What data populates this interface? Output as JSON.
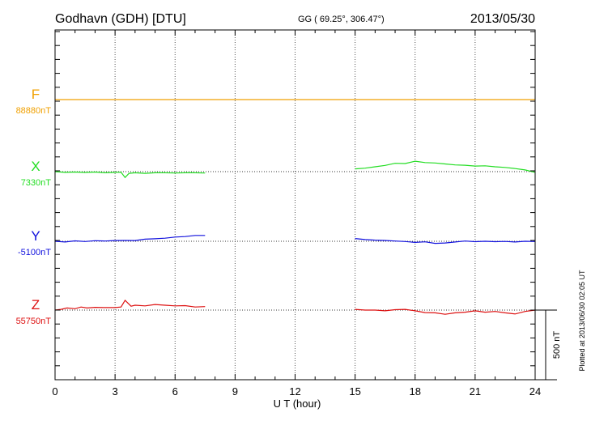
{
  "header": {
    "station": "Godhavn (GDH)  [DTU]",
    "coords": "GG ( 69.25°, 306.47°)",
    "date": "2013/05/30"
  },
  "side_note": "Plotted at 2013/06/30 02:05 UT",
  "scale_label": "500 nT",
  "chart_data": {
    "type": "line",
    "xlabel": "U T (hour)",
    "ylabel": "",
    "xlim": [
      0,
      24
    ],
    "x_ticks": [
      0,
      3,
      6,
      9,
      12,
      15,
      18,
      21,
      24
    ],
    "x_tick_labels": [
      "0",
      "3",
      "6",
      "9",
      "12",
      "15",
      "18",
      "21",
      "24"
    ],
    "scale_bar_nT": 500,
    "gap_hours": [
      7.5,
      15.0
    ],
    "series": [
      {
        "name": "F",
        "baseline_label": "88880nT",
        "color": "#f0a000",
        "points": [
          [
            0,
            0
          ],
          [
            3,
            0
          ],
          [
            6,
            0
          ],
          [
            9,
            0
          ],
          [
            12,
            0
          ],
          [
            15,
            0
          ],
          [
            18,
            0
          ],
          [
            21,
            0
          ],
          [
            24,
            0
          ]
        ]
      },
      {
        "name": "X",
        "baseline_label": "7330nT",
        "color": "#22dd22",
        "segments": [
          [
            [
              0,
              0
            ],
            [
              0.5,
              -5
            ],
            [
              1,
              -3
            ],
            [
              1.5,
              -6
            ],
            [
              2,
              -3
            ],
            [
              2.5,
              -8
            ],
            [
              3,
              -5
            ],
            [
              3.3,
              -4
            ],
            [
              3.5,
              -42
            ],
            [
              3.7,
              -12
            ],
            [
              4,
              -8
            ],
            [
              4.5,
              -12
            ],
            [
              5,
              -8
            ],
            [
              5.5,
              -8
            ],
            [
              6,
              -10
            ],
            [
              6.5,
              -8
            ],
            [
              7,
              -8
            ],
            [
              7.5,
              -10
            ]
          ],
          [
            [
              15,
              20
            ],
            [
              15.5,
              25
            ],
            [
              16,
              35
            ],
            [
              16.5,
              45
            ],
            [
              17,
              60
            ],
            [
              17.5,
              58
            ],
            [
              18,
              75
            ],
            [
              18.5,
              65
            ],
            [
              19,
              62
            ],
            [
              19.5,
              55
            ],
            [
              20,
              48
            ],
            [
              20.5,
              46
            ],
            [
              21,
              40
            ],
            [
              21.5,
              42
            ],
            [
              22,
              35
            ],
            [
              22.5,
              30
            ],
            [
              23,
              22
            ],
            [
              23.5,
              12
            ],
            [
              24,
              -5
            ]
          ]
        ]
      },
      {
        "name": "Y",
        "baseline_label": "-5100nT",
        "color": "#1010dd",
        "segments": [
          [
            [
              0,
              0
            ],
            [
              0.5,
              -5
            ],
            [
              1,
              3
            ],
            [
              1.5,
              -2
            ],
            [
              2,
              4
            ],
            [
              2.5,
              2
            ],
            [
              3,
              5
            ],
            [
              3.5,
              6
            ],
            [
              4,
              5
            ],
            [
              4.5,
              15
            ],
            [
              5,
              18
            ],
            [
              5.5,
              22
            ],
            [
              6,
              30
            ],
            [
              6.5,
              34
            ],
            [
              7,
              42
            ],
            [
              7.5,
              42
            ]
          ],
          [
            [
              15,
              20
            ],
            [
              15.5,
              12
            ],
            [
              16,
              8
            ],
            [
              16.5,
              6
            ],
            [
              17,
              2
            ],
            [
              17.5,
              -2
            ],
            [
              18,
              -8
            ],
            [
              18.5,
              -4
            ],
            [
              19,
              -15
            ],
            [
              19.5,
              -12
            ],
            [
              20,
              -5
            ],
            [
              20.5,
              2
            ],
            [
              21,
              -3
            ],
            [
              21.5,
              0
            ],
            [
              22,
              -3
            ],
            [
              22.5,
              -1
            ],
            [
              23,
              -5
            ],
            [
              23.5,
              0
            ],
            [
              24,
              -2
            ]
          ]
        ]
      },
      {
        "name": "Z",
        "baseline_label": "55750nT",
        "color": "#dd1010",
        "segments": [
          [
            [
              0,
              0
            ],
            [
              0.3,
              5
            ],
            [
              0.6,
              15
            ],
            [
              1,
              10
            ],
            [
              1.3,
              22
            ],
            [
              1.6,
              15
            ],
            [
              2,
              20
            ],
            [
              2.5,
              18
            ],
            [
              3,
              18
            ],
            [
              3.3,
              22
            ],
            [
              3.5,
              70
            ],
            [
              3.8,
              28
            ],
            [
              4,
              35
            ],
            [
              4.5,
              30
            ],
            [
              5,
              40
            ],
            [
              5.5,
              35
            ],
            [
              6,
              30
            ],
            [
              6.5,
              32
            ],
            [
              7,
              22
            ],
            [
              7.5,
              25
            ]
          ],
          [
            [
              15,
              5
            ],
            [
              15.5,
              0
            ],
            [
              16,
              0
            ],
            [
              16.5,
              -5
            ],
            [
              17,
              3
            ],
            [
              17.5,
              5
            ],
            [
              18,
              -5
            ],
            [
              18.5,
              -18
            ],
            [
              19,
              -20
            ],
            [
              19.5,
              -30
            ],
            [
              20,
              -20
            ],
            [
              20.5,
              -15
            ],
            [
              21,
              -5
            ],
            [
              21.5,
              -15
            ],
            [
              22,
              -10
            ],
            [
              22.5,
              -20
            ],
            [
              23,
              -28
            ],
            [
              23.5,
              -10
            ],
            [
              24,
              0
            ]
          ]
        ]
      }
    ]
  }
}
